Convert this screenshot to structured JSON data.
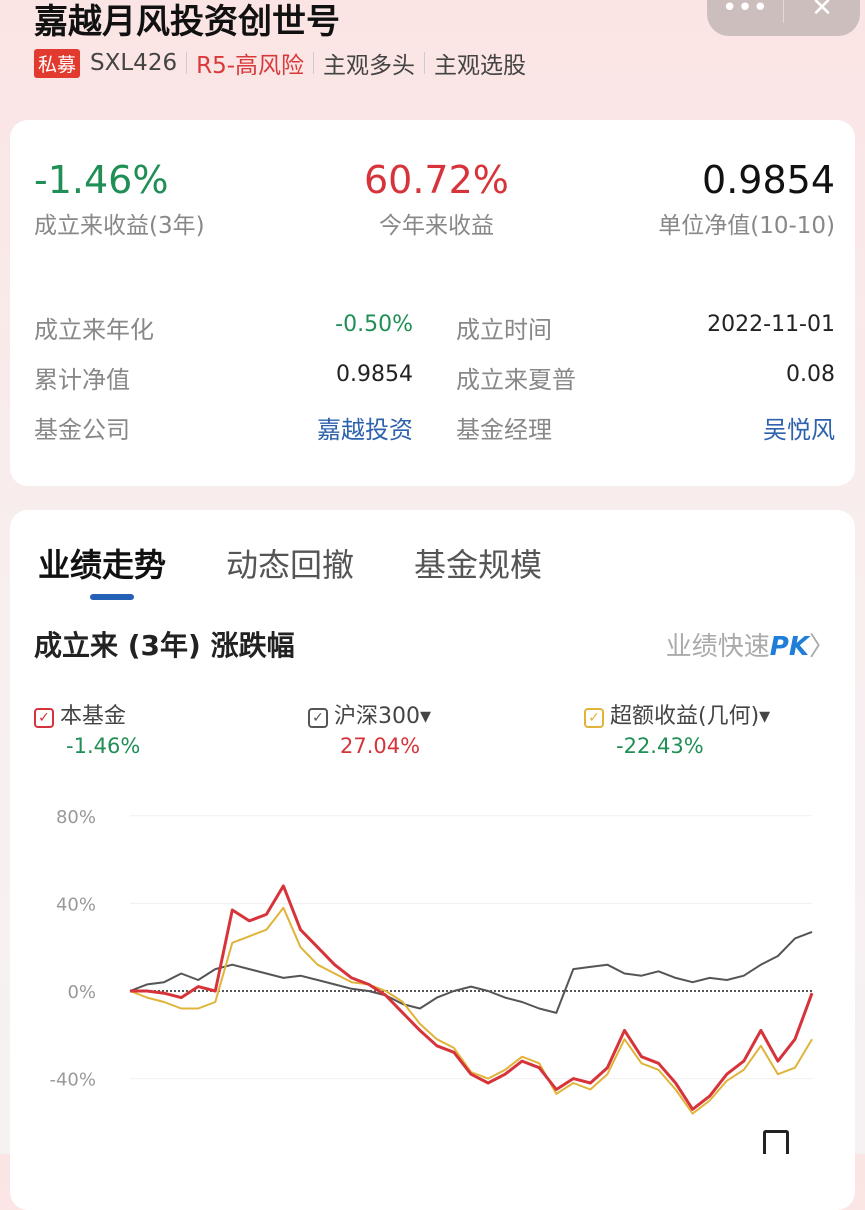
{
  "header": {
    "title": "嘉越月风投资创世号",
    "badge": "私募",
    "code": "SXL426",
    "risk": "R5-高风险",
    "tag1": "主观多头",
    "tag2": "主观选股",
    "more_icon": "•••",
    "close_icon": "✕"
  },
  "stats": [
    {
      "value": "-1.46%",
      "label": "成立来收益(3年)",
      "color": "#1f8f55"
    },
    {
      "value": "60.72%",
      "label": "今年来收益",
      "color": "#d6343a"
    },
    {
      "value": "0.9854",
      "label": "单位净值(10-10)",
      "color": "#111111"
    }
  ],
  "details": {
    "annualized_label": "成立来年化",
    "annualized": "-0.50%",
    "inception_label": "成立时间",
    "inception": "2022-11-01",
    "cum_nav_label": "累计净值",
    "cum_nav": "0.9854",
    "sharpe_label": "成立来夏普",
    "sharpe": "0.08",
    "company_label": "基金公司",
    "company": "嘉越投资",
    "manager_label": "基金经理",
    "manager": "吴悦风"
  },
  "tabs": [
    {
      "label": "业绩走势",
      "active": true
    },
    {
      "label": "动态回撤"
    },
    {
      "label": "基金规模"
    }
  ],
  "section": {
    "title": "成立来 (3年) 涨跌幅",
    "pk_prefix": "业绩快速",
    "pk": "PK",
    "pk_arrow": "〉"
  },
  "legend": [
    {
      "label": "本基金",
      "value": "-1.46%",
      "color": "#d6343a",
      "value_color": "#1f8f55",
      "dropdown": ""
    },
    {
      "label": "沪深300",
      "value": "27.04%",
      "color": "#555555",
      "value_color": "#d6343a",
      "dropdown": "▾"
    },
    {
      "label": "超额收益(几何)",
      "value": "-22.43%",
      "color": "#e0b43a",
      "value_color": "#1f8f55",
      "dropdown": "▾"
    }
  ],
  "chart_data": {
    "type": "line",
    "y_ticks": [
      "80%",
      "40%",
      "0%",
      "-40%"
    ],
    "ylim": [
      -60,
      80
    ],
    "grid": true,
    "x": [
      0,
      1,
      2,
      3,
      4,
      5,
      6,
      7,
      8,
      9,
      10,
      11,
      12,
      13,
      14,
      15,
      16,
      17,
      18,
      19,
      20,
      21,
      22,
      23,
      24,
      25,
      26,
      27,
      28,
      29,
      30,
      31,
      32,
      33,
      34,
      35,
      36,
      37,
      38,
      39,
      40
    ],
    "series": [
      {
        "name": "本基金",
        "color": "#d6343a",
        "values": [
          0,
          0,
          -1,
          -3,
          2,
          0,
          37,
          32,
          35,
          48,
          28,
          20,
          12,
          6,
          3,
          -2,
          -10,
          -18,
          -25,
          -28,
          -38,
          -42,
          -38,
          -32,
          -35,
          -45,
          -40,
          -42,
          -35,
          -18,
          -30,
          -33,
          -42,
          -54,
          -48,
          -38,
          -32,
          -18,
          -32,
          -22,
          -1
        ]
      },
      {
        "name": "沪深300",
        "color": "#555555",
        "values": [
          0,
          3,
          4,
          8,
          5,
          10,
          12,
          10,
          8,
          6,
          7,
          5,
          3,
          1,
          0,
          -2,
          -6,
          -8,
          -3,
          0,
          2,
          0,
          -3,
          -5,
          -8,
          -10,
          10,
          11,
          12,
          8,
          7,
          9,
          6,
          4,
          6,
          5,
          7,
          12,
          16,
          24,
          27
        ]
      },
      {
        "name": "超额收益(几何)",
        "color": "#e0b43a",
        "values": [
          0,
          -3,
          -5,
          -8,
          -8,
          -5,
          22,
          25,
          28,
          38,
          20,
          12,
          8,
          4,
          3,
          0,
          -5,
          -15,
          -22,
          -26,
          -37,
          -40,
          -36,
          -30,
          -33,
          -47,
          -42,
          -45,
          -38,
          -22,
          -33,
          -36,
          -45,
          -56,
          -50,
          -41,
          -36,
          -25,
          -38,
          -35,
          -22
        ]
      }
    ]
  }
}
